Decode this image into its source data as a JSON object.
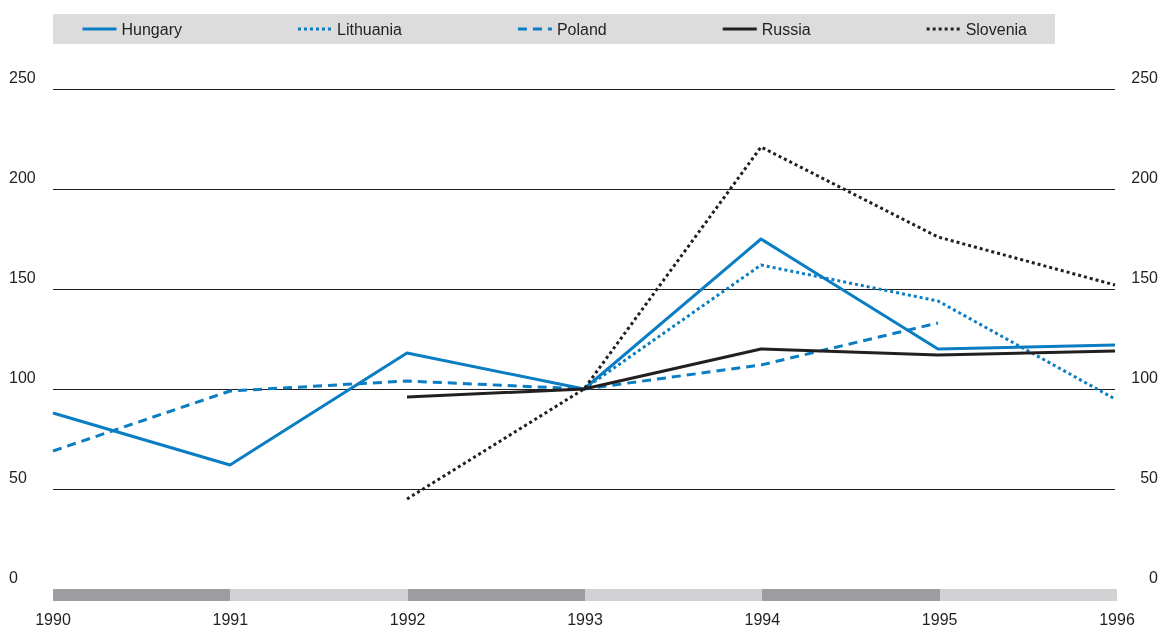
{
  "chart_data": {
    "type": "line",
    "x": [
      1990,
      1991,
      1992,
      1993,
      1994,
      1995,
      1996
    ],
    "series": [
      {
        "name": "Hungary",
        "color": "#0b7dc2",
        "line_style": "solid",
        "values": [
          88,
          62,
          118,
          100,
          175,
          120,
          122
        ]
      },
      {
        "name": "Lithuania",
        "color": "#0b7dc2",
        "line_style": "dotted",
        "values": [
          null,
          null,
          null,
          100,
          162,
          144,
          95
        ]
      },
      {
        "name": "Poland",
        "color": "#0b7dc2",
        "line_style": "dashed",
        "values": [
          69,
          99,
          104,
          100,
          112,
          133,
          null
        ]
      },
      {
        "name": "Russia",
        "color": "#231f20",
        "line_style": "solid",
        "values": [
          null,
          null,
          96,
          100,
          120,
          117,
          119
        ]
      },
      {
        "name": "Slovenia",
        "color": "#231f20",
        "line_style": "dotted",
        "values": [
          null,
          null,
          45,
          100,
          221,
          176,
          152
        ]
      }
    ],
    "xlim": [
      1990,
      1996
    ],
    "xticks": [
      1990,
      1991,
      1992,
      1993,
      1994,
      1995,
      1996
    ],
    "ylim": [
      0,
      250
    ],
    "yticks": [
      0,
      50,
      100,
      150,
      200,
      250
    ],
    "y2lim": [
      0,
      250
    ],
    "y2ticks": [
      0,
      50,
      100,
      150,
      200,
      250
    ],
    "grid": "y",
    "legend": "top",
    "marker": "none"
  }
}
